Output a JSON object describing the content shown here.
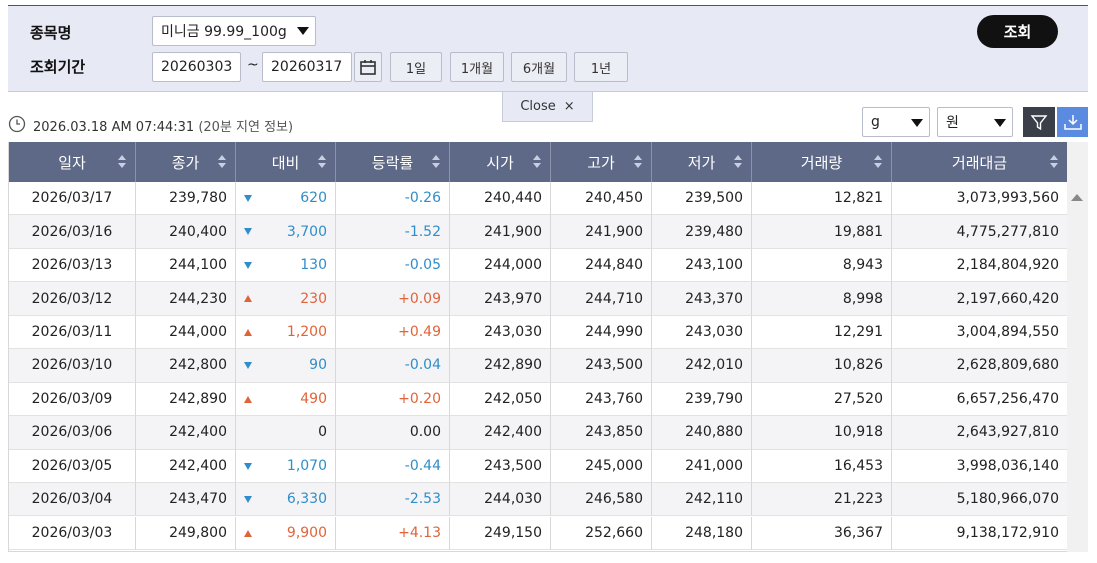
{
  "search": {
    "item_label": "종목명",
    "item_value": "미니금 99.99_100g",
    "period_label": "조회기간",
    "start_date": "20260303",
    "tilde": "~",
    "end_date": "20260317",
    "ranges": [
      "1일",
      "1개월",
      "6개월",
      "1년"
    ],
    "submit": "조회",
    "close": "Close",
    "close_icon": "×"
  },
  "toolbar": {
    "timestamp": "2026.03.18 AM 07:44:31",
    "delay_note": "(20분 지연 정보)",
    "unit": "g",
    "currency": "원"
  },
  "table": {
    "columns": [
      "일자",
      "종가",
      "대비",
      "등락률",
      "시가",
      "고가",
      "저가",
      "거래량",
      "거래대금"
    ],
    "rows": [
      [
        "2026/03/17",
        "239,780",
        "620",
        "-0.26",
        "240,440",
        "240,450",
        "239,500",
        "12,821",
        "3,073,993,560"
      ],
      [
        "2026/03/16",
        "240,400",
        "3,700",
        "-1.52",
        "241,900",
        "241,900",
        "239,480",
        "19,881",
        "4,775,277,810"
      ],
      [
        "2026/03/13",
        "244,100",
        "130",
        "-0.05",
        "244,000",
        "244,840",
        "243,100",
        "8,943",
        "2,184,804,920"
      ],
      [
        "2026/03/12",
        "244,230",
        "230",
        "+0.09",
        "243,970",
        "244,710",
        "243,370",
        "8,998",
        "2,197,660,420"
      ],
      [
        "2026/03/11",
        "244,000",
        "1,200",
        "+0.49",
        "243,030",
        "244,990",
        "243,030",
        "12,291",
        "3,004,894,550"
      ],
      [
        "2026/03/10",
        "242,800",
        "90",
        "-0.04",
        "242,890",
        "243,500",
        "242,010",
        "10,826",
        "2,628,809,680"
      ],
      [
        "2026/03/09",
        "242,890",
        "490",
        "+0.20",
        "242,050",
        "243,760",
        "239,790",
        "27,520",
        "6,657,256,470"
      ],
      [
        "2026/03/06",
        "242,400",
        "0",
        "0.00",
        "242,400",
        "243,850",
        "240,880",
        "10,918",
        "2,643,927,810"
      ],
      [
        "2026/03/05",
        "242,400",
        "1,070",
        "-0.44",
        "243,500",
        "245,000",
        "241,000",
        "16,453",
        "3,998,036,140"
      ],
      [
        "2026/03/04",
        "243,470",
        "6,330",
        "-2.53",
        "244,030",
        "246,580",
        "242,110",
        "21,223",
        "5,180,966,070"
      ],
      [
        "2026/03/03",
        "249,800",
        "9,900",
        "+4.13",
        "249,150",
        "252,660",
        "248,180",
        "36,367",
        "9,138,172,910"
      ]
    ]
  }
}
